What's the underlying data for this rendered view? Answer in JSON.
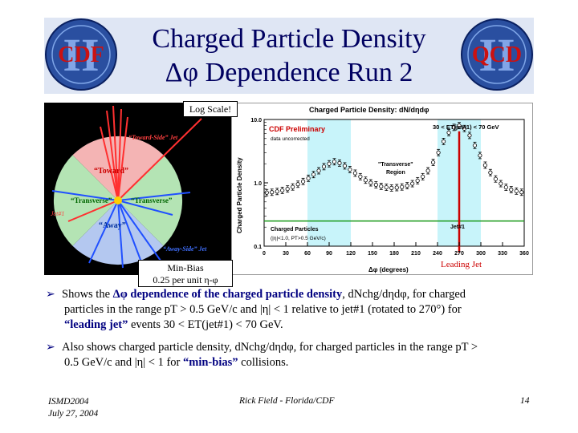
{
  "slide": {
    "title_line1": "Charged Particle Density",
    "title_line2": "Δφ Dependence Run 2",
    "logo_left_text": "CDF",
    "logo_right_text": "QCD",
    "logo_roman": "II",
    "callout_log": "Log Scale!",
    "callout_minbias_line1": "Min-Bias",
    "callout_minbias_line2": "0.25 per unit η-φ"
  },
  "event_display": {
    "toward_side_jet": "“Toward-Side” Jet",
    "toward": "“Toward”",
    "transverse_left": "“Transverse”",
    "transverse_right": "“Transverse”",
    "away": "“Away”",
    "jet1": "Jet#1",
    "away_side_jet": "“Away-Side” Jet"
  },
  "bullets": {
    "b1_pre": "Shows the ",
    "b1_hl": "Δφ dependence of the charged particle density",
    "b1_mid": ", dNchg/dηdφ, for charged",
    "b1_line2": "particles in the range pT > 0.5 GeV/c and |η| < 1 relative to jet#1 (rotated to 270°) for",
    "b1_hl2": "“leading jet”",
    "b1_line3_post": " events 30 < ET(jet#1) < 70 GeV.",
    "b2_pre": "Also shows charged particle density, dNchg/dηdφ, for charged particles in the range pT >",
    "b2_line2_pre": "0.5 GeV/c and |η| < 1 for ",
    "b2_hl": "“min-bias”",
    "b2_line2_post": " collisions."
  },
  "footer": {
    "conf": "ISMD2004",
    "date": "July 27, 2004",
    "author": "Rick Field - Florida/CDF",
    "page": "14"
  },
  "chart_data": {
    "type": "scatter",
    "title": "Charged Particle Density: dN/dηdφ",
    "xlabel": "Δφ (degrees)",
    "ylabel": "Charged Particle Density",
    "log_y": true,
    "xlim": [
      0,
      360
    ],
    "ylim": [
      0.1,
      10
    ],
    "x_ticks": [
      0,
      30,
      60,
      90,
      120,
      150,
      180,
      210,
      240,
      270,
      300,
      330,
      360
    ],
    "y_ticks": [
      {
        "value": 10,
        "label": "10.0"
      },
      {
        "value": 1,
        "label": "1.0"
      },
      {
        "value": 0.1,
        "label": "0.1"
      }
    ],
    "annotations": {
      "preliminary": "CDF Preliminary",
      "uncorrected": "data uncorrected",
      "cut": "30 < ET(jet#1) < 70 GeV",
      "transverse": "\"Transverse\"",
      "region": "Region",
      "jet1": "Jet#1",
      "leading_jet": "Leading Jet",
      "legend_title": "Charged Particles",
      "legend_cuts": "(|η|<1.0, PT>0.5 GeV/c)"
    },
    "shaded_bands": [
      [
        60,
        120
      ],
      [
        240,
        300
      ]
    ],
    "jet_marker_x": 270,
    "min_bias_level": 0.25,
    "series": [
      {
        "name": "",
        "x": [
          3.6,
          10.8,
          18,
          25.2,
          32.4,
          39.6,
          46.8,
          54,
          61.2,
          68.4,
          75.6,
          82.8,
          90,
          97.2,
          104.4,
          111.6,
          118.8,
          126,
          133.2,
          140.4,
          147.6,
          154.8,
          162,
          169.2,
          176.4,
          183.6,
          190.8,
          198,
          205.2,
          212.4,
          219.6,
          226.8,
          234,
          241.2,
          248.4,
          255.6,
          262.8,
          270,
          277.2,
          284.4,
          291.6,
          298.8,
          306,
          313.2,
          320.4,
          327.6,
          334.8,
          342,
          349.2,
          356.4
        ],
        "y": [
          0.7,
          0.71,
          0.73,
          0.76,
          0.8,
          0.86,
          0.95,
          1.05,
          1.18,
          1.35,
          1.55,
          1.8,
          2.0,
          2.15,
          2.05,
          1.85,
          1.62,
          1.42,
          1.25,
          1.1,
          1.0,
          0.93,
          0.88,
          0.85,
          0.83,
          0.84,
          0.86,
          0.9,
          0.97,
          1.08,
          1.25,
          1.55,
          2.1,
          3.0,
          4.5,
          6.2,
          7.5,
          8.0,
          7.2,
          5.6,
          3.9,
          2.7,
          1.9,
          1.45,
          1.15,
          0.97,
          0.85,
          0.78,
          0.74,
          0.71
        ]
      }
    ]
  }
}
